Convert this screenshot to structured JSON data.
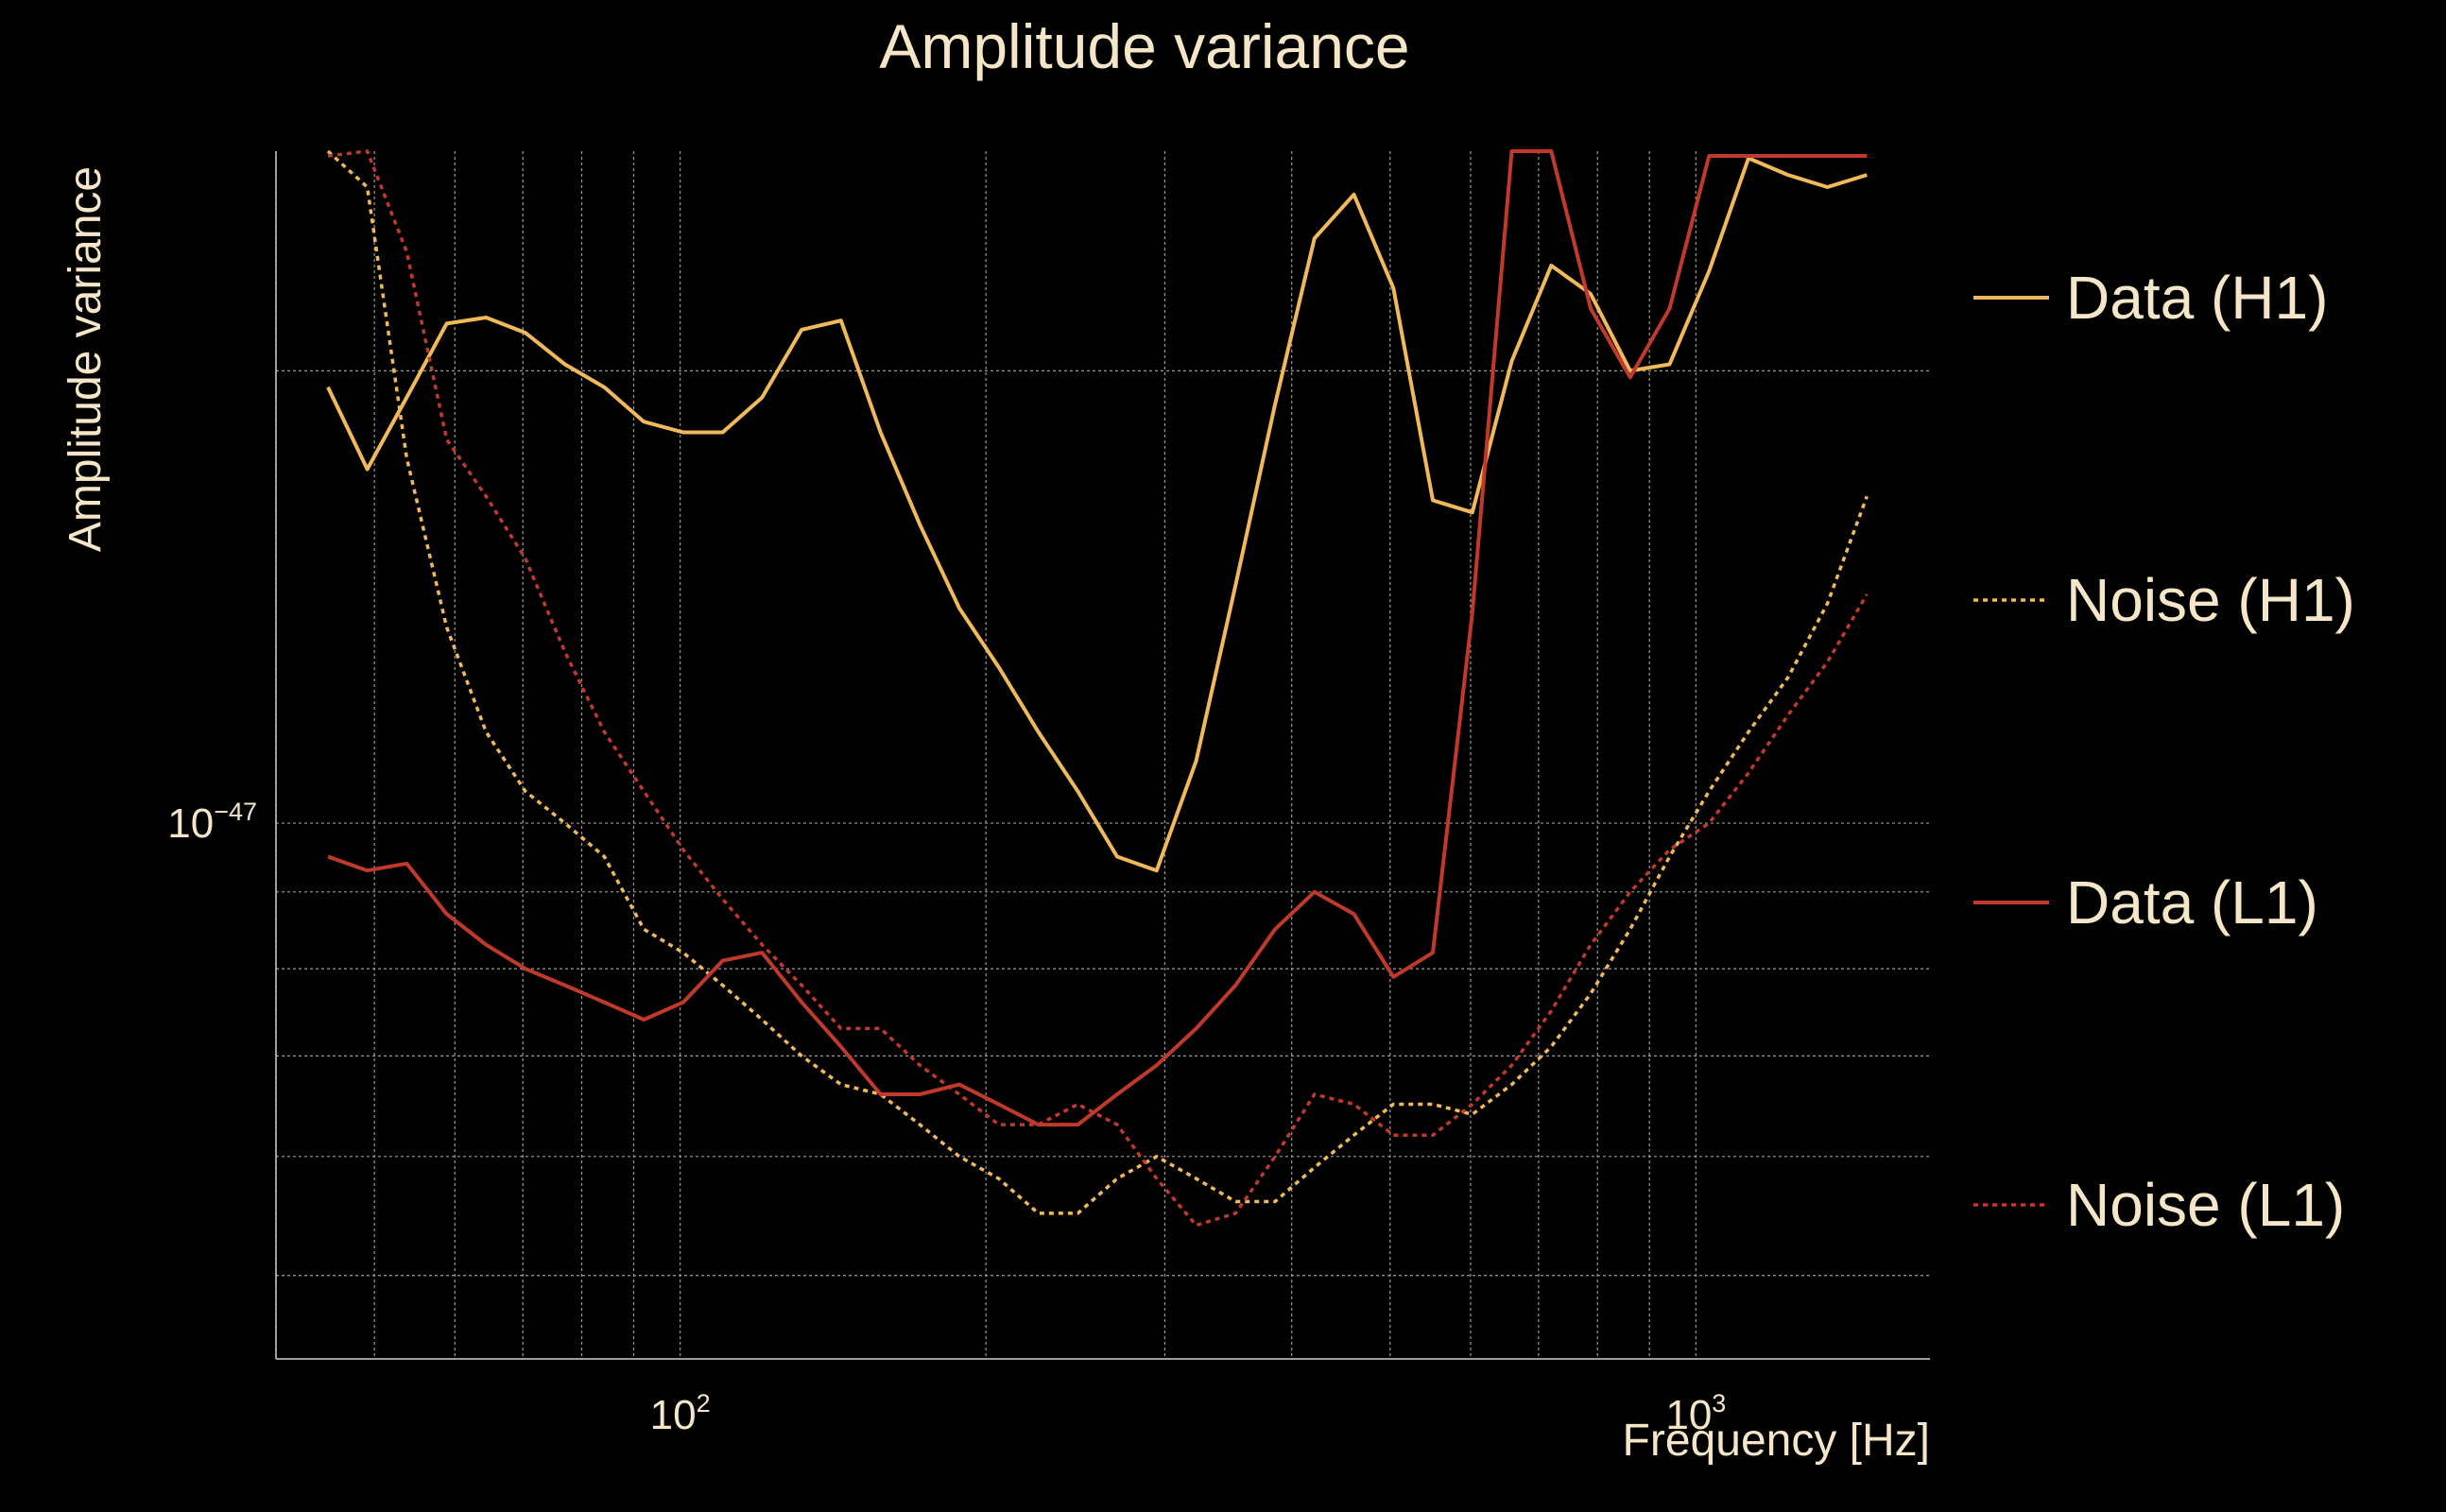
{
  "chart_data": {
    "type": "line",
    "title": "Amplitude variance",
    "xlabel": "Frequency [Hz]",
    "ylabel": "Amplitude variance",
    "x_scale": "log",
    "y_scale": "log",
    "xlim": [
      40,
      1700
    ],
    "ylim": [
      4.4e-48,
      2.8e-47
    ],
    "grid": true,
    "legend_position": "right",
    "x_ticks": [
      {
        "base": "10",
        "exp": "2",
        "value": 100
      },
      {
        "base": "10",
        "exp": "3",
        "value": 1000
      }
    ],
    "y_ticks": [
      {
        "base": "10",
        "exp": "−47",
        "value": 1e-47
      }
    ],
    "x": [
      45,
      49.2,
      53.8,
      58.9,
      64.4,
      70.4,
      77,
      84.2,
      92.1,
      100.7,
      110.1,
      120.4,
      131.7,
      144,
      157.5,
      172.2,
      188.3,
      205.9,
      225.2,
      246.3,
      269.3,
      294.5,
      322.1,
      352.2,
      385.2,
      421.2,
      460.6,
      503.7,
      550.8,
      602.4,
      658.7,
      720.4,
      787.8,
      861.5,
      942.1,
      1030.3,
      1126.7,
      1232.1,
      1347.4,
      1473.5
    ],
    "series": [
      {
        "name": "Data (H1)",
        "color": "#f0b95a",
        "dash": "solid",
        "values": [
          1.95e-47,
          1.72e-47,
          1.92e-47,
          2.15e-47,
          2.17e-47,
          2.12e-47,
          2.02e-47,
          1.95e-47,
          1.85e-47,
          1.82e-47,
          1.82e-47,
          1.92e-47,
          2.13e-47,
          2.16e-47,
          1.82e-47,
          1.58e-47,
          1.39e-47,
          1.27e-47,
          1.15e-47,
          1.05e-47,
          9.5e-48,
          9.3e-48,
          1.1e-47,
          1.44e-47,
          1.9e-47,
          2.45e-47,
          2.62e-47,
          2.27e-47,
          1.64e-47,
          1.61e-47,
          2.03e-47,
          2.35e-47,
          2.25e-47,
          2e-47,
          2.02e-47,
          2.33e-47,
          2.77e-47,
          2.7e-47,
          2.65e-47,
          2.7e-47
        ],
        "x_idx": [
          0,
          1,
          2,
          3,
          4,
          5,
          6,
          7,
          8,
          9,
          10,
          11,
          12,
          13,
          14,
          15,
          16,
          17,
          18,
          19,
          20,
          21,
          22,
          23,
          24,
          25,
          26,
          27,
          28,
          29,
          30,
          31,
          32,
          33,
          34,
          35,
          36,
          37,
          38,
          39
        ]
      },
      {
        "name": "Noise (H1)",
        "color": "#f0b95a",
        "dash": "dotted",
        "values": [
          2.8e-47,
          2.65e-47,
          1.75e-47,
          1.35e-47,
          1.15e-47,
          1.05e-47,
          1e-47,
          9.5e-48,
          8.5e-48,
          8.2e-48,
          7.8e-48,
          7.4e-48,
          7e-48,
          6.7e-48,
          6.6e-48,
          6.3e-48,
          6e-48,
          5.8e-48,
          5.5e-48,
          5.5e-48,
          5.8e-48,
          6e-48,
          5.8e-48,
          5.6e-48,
          5.6e-48,
          5.9e-48,
          6.2e-48,
          6.5e-48,
          6.5e-48,
          6.4e-48,
          6.7e-48,
          7.1e-48,
          7.7e-48,
          8.5e-48,
          9.5e-48,
          1.05e-47,
          1.15e-47,
          1.25e-47,
          1.4e-47,
          1.65e-47
        ]
      },
      {
        "name": "Data (L1)",
        "color": "#c0392b",
        "dash": "solid",
        "values": [
          9.5e-48,
          9.3e-48,
          9.4e-48,
          8.7e-48,
          8.3e-48,
          8e-48,
          7.8e-48,
          7.6e-48,
          7.4e-48,
          7.6e-48,
          8.1e-48,
          8.2e-48,
          7.6e-48,
          7.1e-48,
          6.6e-48,
          6.6e-48,
          6.7e-48,
          6.5e-48,
          6.3e-48,
          6.3e-48,
          6.6e-48,
          6.9e-48,
          7.3e-48,
          7.8e-48,
          8.5e-48,
          9e-48,
          8.7e-48,
          7.9e-48,
          8.2e-48,
          1.38e-47,
          2.8e-47,
          2.8e-47,
          2.2e-47,
          1.98e-47,
          2.2e-47,
          2.78e-47,
          2.78e-47,
          2.78e-47,
          2.78e-47,
          2.78e-47
        ]
      },
      {
        "name": "Noise (L1)",
        "color": "#c0392b",
        "dash": "dotted",
        "values": [
          2.78e-47,
          2.8e-47,
          2.4e-47,
          1.8e-47,
          1.65e-47,
          1.5e-47,
          1.3e-47,
          1.15e-47,
          1.05e-47,
          9.6e-48,
          8.9e-48,
          8.3e-48,
          7.8e-48,
          7.3e-48,
          7.3e-48,
          6.9e-48,
          6.6e-48,
          6.3e-48,
          6.3e-48,
          6.5e-48,
          6.3e-48,
          5.8e-48,
          5.4e-48,
          5.5e-48,
          6e-48,
          6.6e-48,
          6.5e-48,
          6.2e-48,
          6.2e-48,
          6.5e-48,
          6.9e-48,
          7.5e-48,
          8.3e-48,
          9e-48,
          9.6e-48,
          1e-47,
          1.08e-47,
          1.18e-47,
          1.28e-47,
          1.42e-47
        ]
      }
    ]
  }
}
